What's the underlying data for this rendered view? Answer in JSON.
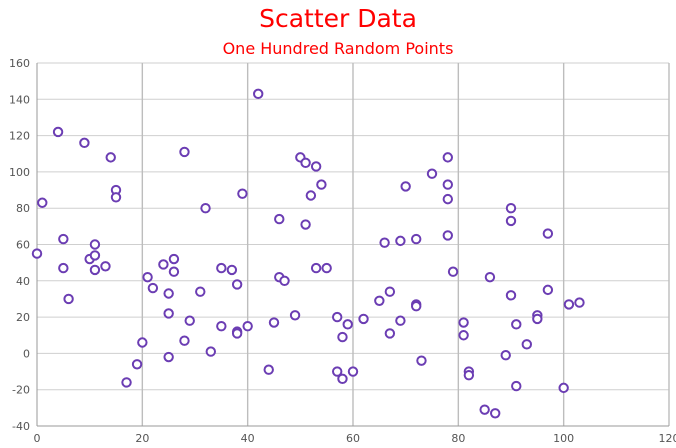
{
  "chart_data": {
    "type": "scatter",
    "title": "Scatter Data",
    "subtitle": "One Hundred Random Points",
    "xlim": [
      0,
      120
    ],
    "ylim": [
      -40,
      160
    ],
    "x_ticks": [
      0,
      20,
      40,
      60,
      80,
      100,
      120
    ],
    "y_ticks": [
      -40,
      -20,
      0,
      20,
      40,
      60,
      80,
      100,
      120,
      140,
      160
    ],
    "grid": true,
    "legend": "none",
    "marker_color": "#6b3db3",
    "title_color": "#ff0000",
    "points": [
      {
        "x": 0,
        "y": 55
      },
      {
        "x": 1,
        "y": 83
      },
      {
        "x": 4,
        "y": 122
      },
      {
        "x": 5,
        "y": 63
      },
      {
        "x": 5,
        "y": 47
      },
      {
        "x": 6,
        "y": 30
      },
      {
        "x": 9,
        "y": 116
      },
      {
        "x": 10,
        "y": 52
      },
      {
        "x": 11,
        "y": 60
      },
      {
        "x": 11,
        "y": 54
      },
      {
        "x": 11,
        "y": 46
      },
      {
        "x": 13,
        "y": 48
      },
      {
        "x": 14,
        "y": 108
      },
      {
        "x": 15,
        "y": 90
      },
      {
        "x": 15,
        "y": 86
      },
      {
        "x": 17,
        "y": -16
      },
      {
        "x": 19,
        "y": -6
      },
      {
        "x": 20,
        "y": 6
      },
      {
        "x": 21,
        "y": 42
      },
      {
        "x": 22,
        "y": 36
      },
      {
        "x": 24,
        "y": 49
      },
      {
        "x": 25,
        "y": 33
      },
      {
        "x": 25,
        "y": 22
      },
      {
        "x": 25,
        "y": -2
      },
      {
        "x": 26,
        "y": 52
      },
      {
        "x": 26,
        "y": 45
      },
      {
        "x": 28,
        "y": 111
      },
      {
        "x": 28,
        "y": 7
      },
      {
        "x": 29,
        "y": 18
      },
      {
        "x": 31,
        "y": 34
      },
      {
        "x": 32,
        "y": 80
      },
      {
        "x": 33,
        "y": 1
      },
      {
        "x": 35,
        "y": 47
      },
      {
        "x": 35,
        "y": 15
      },
      {
        "x": 37,
        "y": 46
      },
      {
        "x": 38,
        "y": 38
      },
      {
        "x": 38,
        "y": 12
      },
      {
        "x": 38,
        "y": 11
      },
      {
        "x": 39,
        "y": 88
      },
      {
        "x": 40,
        "y": 15
      },
      {
        "x": 42,
        "y": 143
      },
      {
        "x": 44,
        "y": -9
      },
      {
        "x": 45,
        "y": 17
      },
      {
        "x": 46,
        "y": 74
      },
      {
        "x": 46,
        "y": 42
      },
      {
        "x": 47,
        "y": 40
      },
      {
        "x": 49,
        "y": 21
      },
      {
        "x": 50,
        "y": 108
      },
      {
        "x": 51,
        "y": 105
      },
      {
        "x": 51,
        "y": 71
      },
      {
        "x": 52,
        "y": 87
      },
      {
        "x": 53,
        "y": 103
      },
      {
        "x": 53,
        "y": 47
      },
      {
        "x": 54,
        "y": 93
      },
      {
        "x": 55,
        "y": 47
      },
      {
        "x": 57,
        "y": 20
      },
      {
        "x": 57,
        "y": -10
      },
      {
        "x": 58,
        "y": 9
      },
      {
        "x": 58,
        "y": -14
      },
      {
        "x": 59,
        "y": 16
      },
      {
        "x": 60,
        "y": -10
      },
      {
        "x": 62,
        "y": 19
      },
      {
        "x": 65,
        "y": 29
      },
      {
        "x": 66,
        "y": 61
      },
      {
        "x": 67,
        "y": 34
      },
      {
        "x": 67,
        "y": 11
      },
      {
        "x": 69,
        "y": 62
      },
      {
        "x": 69,
        "y": 18
      },
      {
        "x": 70,
        "y": 92
      },
      {
        "x": 72,
        "y": 63
      },
      {
        "x": 72,
        "y": 27
      },
      {
        "x": 72,
        "y": 26
      },
      {
        "x": 73,
        "y": -4
      },
      {
        "x": 75,
        "y": 99
      },
      {
        "x": 78,
        "y": 108
      },
      {
        "x": 78,
        "y": 93
      },
      {
        "x": 78,
        "y": 85
      },
      {
        "x": 78,
        "y": 65
      },
      {
        "x": 79,
        "y": 45
      },
      {
        "x": 81,
        "y": 17
      },
      {
        "x": 81,
        "y": 10
      },
      {
        "x": 82,
        "y": -10
      },
      {
        "x": 82,
        "y": -12
      },
      {
        "x": 85,
        "y": -31
      },
      {
        "x": 86,
        "y": 42
      },
      {
        "x": 87,
        "y": -33
      },
      {
        "x": 89,
        "y": -1
      },
      {
        "x": 90,
        "y": 80
      },
      {
        "x": 90,
        "y": 73
      },
      {
        "x": 90,
        "y": 32
      },
      {
        "x": 91,
        "y": 16
      },
      {
        "x": 91,
        "y": -18
      },
      {
        "x": 93,
        "y": 5
      },
      {
        "x": 95,
        "y": 21
      },
      {
        "x": 95,
        "y": 19
      },
      {
        "x": 97,
        "y": 66
      },
      {
        "x": 97,
        "y": 35
      },
      {
        "x": 100,
        "y": -19
      },
      {
        "x": 101,
        "y": 27
      },
      {
        "x": 103,
        "y": 28
      }
    ]
  }
}
